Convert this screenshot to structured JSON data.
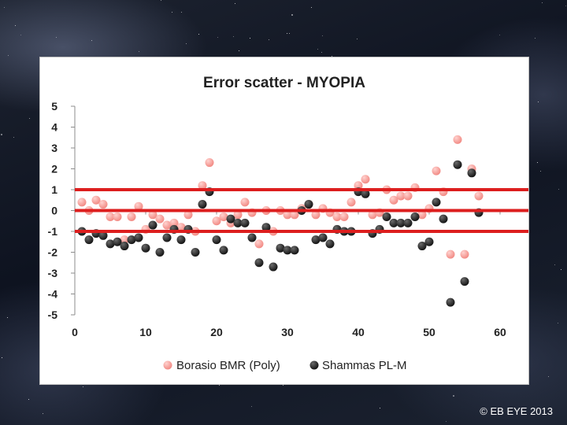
{
  "chart_data": {
    "type": "scatter",
    "title": "Error scatter - MYOPIA",
    "xlim": [
      0,
      60
    ],
    "ylim": [
      -5,
      5
    ],
    "x_ticks": [
      0,
      10,
      20,
      30,
      40,
      50,
      60
    ],
    "y_ticks": [
      5,
      4,
      3,
      2,
      1,
      0,
      -1,
      -2,
      -3,
      -4,
      -5
    ],
    "reference_lines": [
      1,
      0,
      -1
    ],
    "reference_line_color": "#dd1e1e",
    "legend_position": "bottom",
    "series": [
      {
        "name": "Borasio BMR (Poly)",
        "color": "#f28b85",
        "points": [
          [
            1,
            0.4
          ],
          [
            2,
            0.0
          ],
          [
            3,
            0.5
          ],
          [
            4,
            0.3
          ],
          [
            5,
            -0.3
          ],
          [
            6,
            -0.3
          ],
          [
            7,
            -1.4
          ],
          [
            8,
            -0.3
          ],
          [
            9,
            0.2
          ],
          [
            10,
            -0.9
          ],
          [
            11,
            -0.2
          ],
          [
            12,
            -0.4
          ],
          [
            13,
            -0.7
          ],
          [
            14,
            -0.6
          ],
          [
            15,
            -0.8
          ],
          [
            16,
            -0.2
          ],
          [
            17,
            -1.0
          ],
          [
            18,
            1.2
          ],
          [
            19,
            2.3
          ],
          [
            20,
            -0.5
          ],
          [
            21,
            -0.3
          ],
          [
            22,
            -0.6
          ],
          [
            23,
            -0.2
          ],
          [
            24,
            0.4
          ],
          [
            25,
            -0.1
          ],
          [
            26,
            -1.6
          ],
          [
            27,
            0.0
          ],
          [
            28,
            -1.0
          ],
          [
            29,
            0.0
          ],
          [
            30,
            -0.2
          ],
          [
            31,
            -0.2
          ],
          [
            32,
            0.1
          ],
          [
            33,
            0.3
          ],
          [
            34,
            -0.2
          ],
          [
            35,
            0.1
          ],
          [
            36,
            -0.1
          ],
          [
            37,
            -0.3
          ],
          [
            38,
            -0.3
          ],
          [
            39,
            0.4
          ],
          [
            40,
            1.2
          ],
          [
            41,
            1.5
          ],
          [
            42,
            -0.2
          ],
          [
            43,
            -0.1
          ],
          [
            44,
            1.0
          ],
          [
            45,
            0.5
          ],
          [
            46,
            0.7
          ],
          [
            47,
            0.7
          ],
          [
            48,
            1.1
          ],
          [
            49,
            -0.2
          ],
          [
            50,
            0.1
          ],
          [
            51,
            1.9
          ],
          [
            52,
            0.9
          ],
          [
            53,
            -2.1
          ],
          [
            54,
            3.4
          ],
          [
            55,
            -2.1
          ],
          [
            56,
            2.0
          ],
          [
            57,
            0.7
          ]
        ]
      },
      {
        "name": "Shammas PL-M",
        "color": "#141414",
        "points": [
          [
            1,
            -1.0
          ],
          [
            2,
            -1.4
          ],
          [
            3,
            -1.1
          ],
          [
            4,
            -1.2
          ],
          [
            5,
            -1.6
          ],
          [
            6,
            -1.5
          ],
          [
            7,
            -1.7
          ],
          [
            8,
            -1.4
          ],
          [
            9,
            -1.3
          ],
          [
            10,
            -1.8
          ],
          [
            11,
            -0.7
          ],
          [
            12,
            -2.0
          ],
          [
            13,
            -1.3
          ],
          [
            14,
            -0.9
          ],
          [
            15,
            -1.4
          ],
          [
            16,
            -0.9
          ],
          [
            17,
            -2.0
          ],
          [
            18,
            0.3
          ],
          [
            19,
            0.9
          ],
          [
            20,
            -1.4
          ],
          [
            21,
            -1.9
          ],
          [
            22,
            -0.4
          ],
          [
            23,
            -0.6
          ],
          [
            24,
            -0.6
          ],
          [
            25,
            -1.3
          ],
          [
            26,
            -2.5
          ],
          [
            27,
            -0.8
          ],
          [
            28,
            -2.7
          ],
          [
            29,
            -1.8
          ],
          [
            30,
            -1.9
          ],
          [
            31,
            -1.9
          ],
          [
            32,
            0.0
          ],
          [
            33,
            0.3
          ],
          [
            34,
            -1.4
          ],
          [
            35,
            -1.3
          ],
          [
            36,
            -1.6
          ],
          [
            37,
            -0.9
          ],
          [
            38,
            -1.0
          ],
          [
            39,
            -1.0
          ],
          [
            40,
            0.9
          ],
          [
            41,
            0.8
          ],
          [
            42,
            -1.1
          ],
          [
            43,
            -0.9
          ],
          [
            44,
            -0.3
          ],
          [
            45,
            -0.6
          ],
          [
            46,
            -0.6
          ],
          [
            47,
            -0.6
          ],
          [
            48,
            -0.3
          ],
          [
            49,
            -1.7
          ],
          [
            50,
            -1.5
          ],
          [
            51,
            0.4
          ],
          [
            52,
            -0.4
          ],
          [
            53,
            -4.4
          ],
          [
            54,
            2.2
          ],
          [
            55,
            -3.4
          ],
          [
            56,
            1.8
          ],
          [
            57,
            -0.1
          ]
        ]
      }
    ]
  },
  "footer": {
    "copyright": "© EB EYE 2013"
  }
}
